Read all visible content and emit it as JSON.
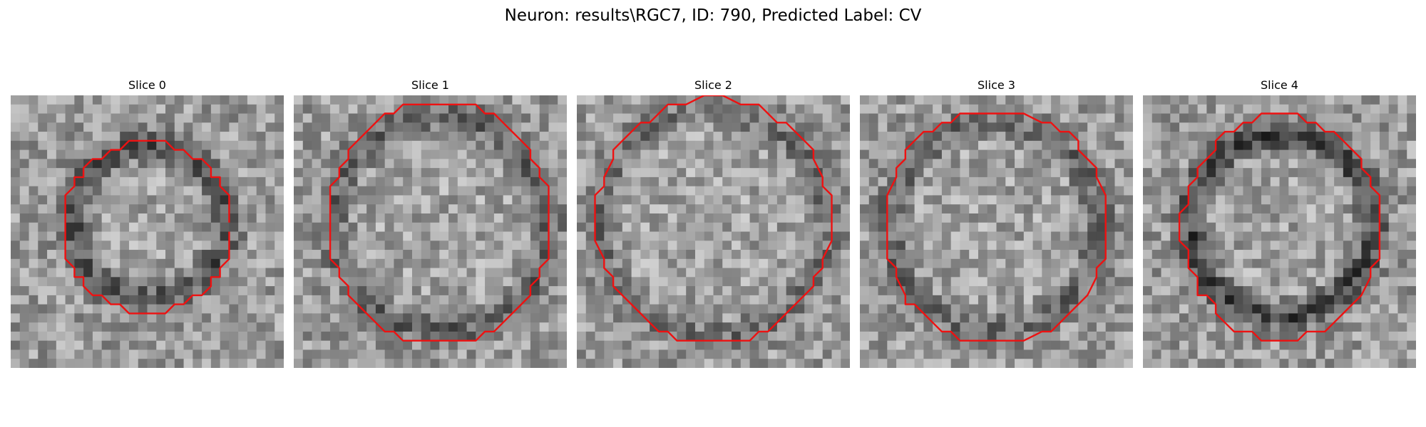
{
  "figure": {
    "suptitle": "Neuron: results\\RGC7, ID: 790, Predicted Label: CV"
  },
  "panels": [
    {
      "title": "Slice 0"
    },
    {
      "title": "Slice 1"
    },
    {
      "title": "Slice 2"
    },
    {
      "title": "Slice 3"
    },
    {
      "title": "Slice 4"
    }
  ],
  "colors": {
    "contour": "#ee1111",
    "background": "#ffffff"
  }
}
